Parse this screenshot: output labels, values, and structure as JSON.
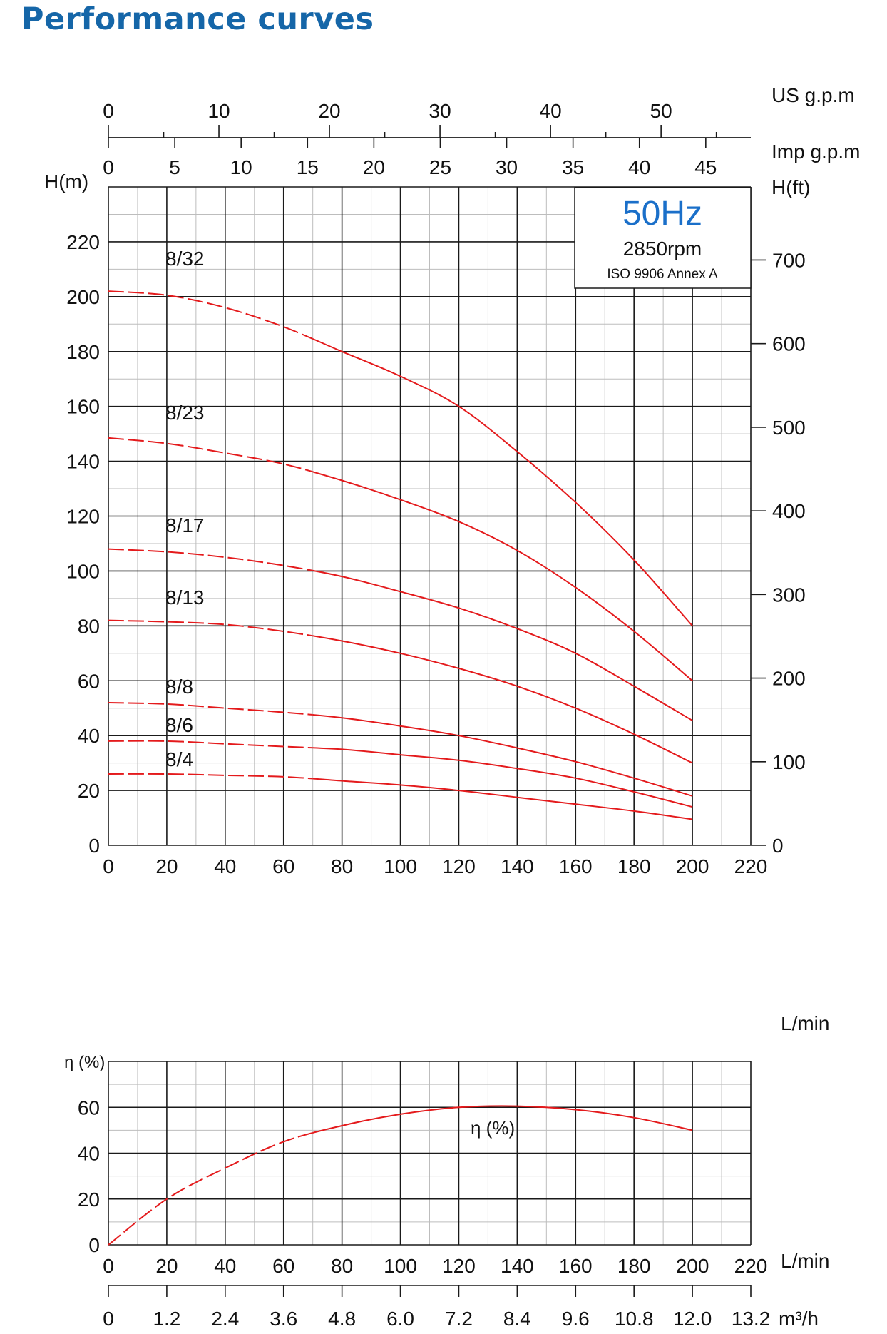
{
  "title": "Performance curves",
  "colors": {
    "title": "#1566a8",
    "curve": "#e41a1c",
    "hz": "#1a6fc9",
    "grid_major": "#1a1a1a",
    "grid_minor": "#bdbdbd"
  },
  "info_box": {
    "frequency": "50Hz",
    "speed": "2850rpm",
    "standard": "ISO 9906 Annex A"
  },
  "chart_data": [
    {
      "type": "line",
      "xlabel": "L/min",
      "ylabel": "H(m)",
      "y2label": "H(ft)",
      "top_axis_1_label": "US g.p.m",
      "top_axis_2_label": "Imp g.p.m",
      "xlim": [
        0,
        220
      ],
      "ylim": [
        0,
        240
      ],
      "y2lim": [
        0,
        787.4
      ],
      "x_ticks": [
        0,
        20,
        40,
        60,
        80,
        100,
        120,
        140,
        160,
        180,
        200,
        220
      ],
      "y_ticks": [
        0,
        20,
        40,
        60,
        80,
        100,
        120,
        140,
        160,
        180,
        200,
        220
      ],
      "y2_ticks": [
        0,
        100,
        200,
        300,
        400,
        500,
        600,
        700
      ],
      "us_gpm_ticks": [
        0,
        10,
        20,
        30,
        40,
        50
      ],
      "imp_gpm_ticks": [
        0,
        5,
        10,
        15,
        20,
        25,
        30,
        35,
        40,
        45
      ],
      "grid": true,
      "dashed_until_x": 70,
      "series": [
        {
          "name": "8/32",
          "x": [
            0,
            20,
            40,
            60,
            80,
            100,
            120,
            140,
            160,
            180,
            200
          ],
          "y": [
            202,
            200.5,
            196,
            189,
            180,
            171,
            160,
            143.5,
            125,
            104,
            80
          ]
        },
        {
          "name": "8/23",
          "x": [
            0,
            20,
            40,
            60,
            80,
            100,
            120,
            140,
            160,
            180,
            200
          ],
          "y": [
            148.5,
            146.5,
            143,
            139,
            133,
            126,
            118,
            107.5,
            94,
            78,
            60
          ]
        },
        {
          "name": "8/17",
          "x": [
            0,
            20,
            40,
            60,
            80,
            100,
            120,
            140,
            160,
            180,
            200
          ],
          "y": [
            108,
            107,
            105,
            102,
            98,
            92.5,
            86.5,
            79,
            70,
            58,
            45.5
          ]
        },
        {
          "name": "8/13",
          "x": [
            0,
            20,
            40,
            60,
            80,
            100,
            120,
            140,
            160,
            180,
            200
          ],
          "y": [
            82,
            81.5,
            80.5,
            78,
            74.5,
            70,
            64.5,
            58,
            50,
            40.5,
            30
          ]
        },
        {
          "name": "8/8",
          "x": [
            0,
            20,
            40,
            60,
            80,
            100,
            120,
            140,
            160,
            180,
            200
          ],
          "y": [
            52,
            51.5,
            50,
            48.5,
            46.5,
            43.5,
            40,
            35.5,
            30.5,
            24.5,
            18
          ]
        },
        {
          "name": "8/6",
          "x": [
            0,
            20,
            40,
            60,
            80,
            100,
            120,
            140,
            160,
            180,
            200
          ],
          "y": [
            38,
            38,
            37,
            36,
            35,
            33,
            31,
            28,
            24.5,
            19.5,
            14
          ]
        },
        {
          "name": "8/4",
          "x": [
            0,
            20,
            40,
            60,
            80,
            100,
            120,
            140,
            160,
            180,
            200
          ],
          "y": [
            26,
            26,
            25.5,
            25,
            23.5,
            22,
            20,
            17.5,
            15,
            12.5,
            9.5
          ]
        }
      ]
    },
    {
      "type": "line",
      "xlabel": "L/min",
      "ylabel": "η (%)",
      "m3h_label": "m³/h",
      "xlim": [
        0,
        220
      ],
      "ylim": [
        0,
        80
      ],
      "x_ticks": [
        0,
        20,
        40,
        60,
        80,
        100,
        120,
        140,
        160,
        180,
        200,
        220
      ],
      "y_ticks": [
        0,
        20,
        40,
        60
      ],
      "m3h_ticks": [
        "0",
        "1.2",
        "2.4",
        "3.6",
        "4.8",
        "6.0",
        "7.2",
        "8.4",
        "9.6",
        "10.8",
        "12.0",
        "13.2"
      ],
      "grid": true,
      "dashed_until_x": 70,
      "series": [
        {
          "name": "η (%)",
          "x": [
            0,
            20,
            40,
            60,
            80,
            100,
            120,
            140,
            160,
            180,
            200
          ],
          "y": [
            0,
            20,
            33.5,
            45,
            52,
            57,
            60,
            60.5,
            59,
            55.5,
            50
          ]
        }
      ]
    }
  ]
}
